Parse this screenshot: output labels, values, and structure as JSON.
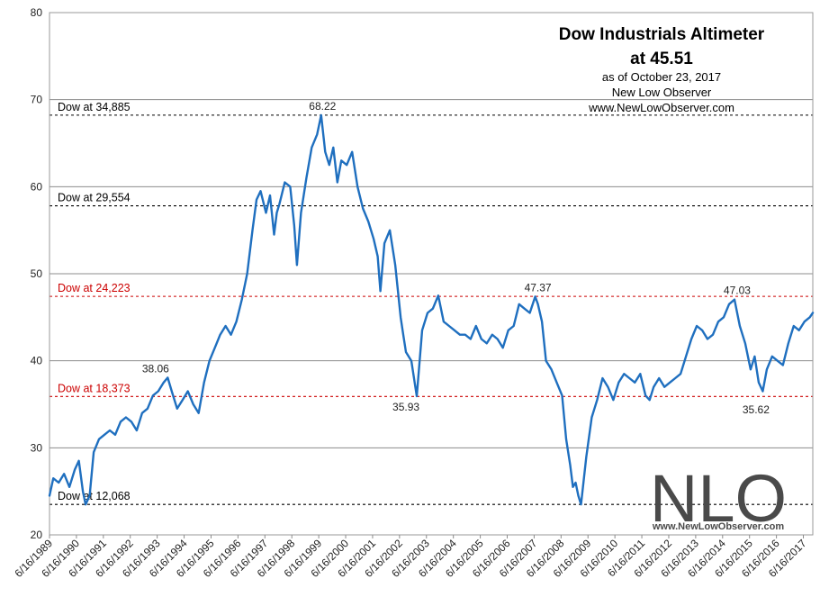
{
  "chart_data": {
    "type": "line",
    "title": "Dow Industrials Altimeter",
    "subtitle": "at 45.51",
    "notes": [
      "as of October 23, 2017",
      "New Low Observer",
      "www.NewLowObserver.com"
    ],
    "watermark": {
      "logo": "NLO",
      "url": "www.NewLowObserver.com"
    },
    "ylim": [
      20,
      80
    ],
    "yticks": [
      20,
      30,
      40,
      50,
      60,
      70,
      80
    ],
    "ytick_labels": [
      "20",
      "30",
      "40",
      "50",
      "60",
      "70",
      "80"
    ],
    "x_range": [
      1989.46,
      2017.81
    ],
    "xtick_values": [
      1989.46,
      1990.46,
      1991.46,
      1992.46,
      1993.46,
      1994.46,
      1995.46,
      1996.46,
      1997.46,
      1998.46,
      1999.46,
      2000.46,
      2001.46,
      2002.46,
      2003.46,
      2004.46,
      2005.46,
      2006.46,
      2007.46,
      2008.46,
      2009.46,
      2010.46,
      2011.46,
      2012.46,
      2013.46,
      2014.46,
      2015.46,
      2016.46,
      2017.46
    ],
    "xtick_labels": [
      "6/16/1989",
      "6/16/1990",
      "6/16/1991",
      "6/16/1992",
      "6/16/1993",
      "6/16/1994",
      "6/16/1995",
      "6/16/1996",
      "6/16/1997",
      "6/16/1998",
      "6/16/1999",
      "6/16/2000",
      "6/16/2001",
      "6/16/2002",
      "6/16/2003",
      "6/16/2004",
      "6/16/2005",
      "6/16/2006",
      "6/16/2007",
      "6/16/2008",
      "6/16/2009",
      "6/16/2010",
      "6/16/2011",
      "6/16/2012",
      "6/16/2013",
      "6/16/2014",
      "6/16/2015",
      "6/16/2016",
      "6/16/2017"
    ],
    "reference_lines": [
      {
        "label": "Dow at 34,885",
        "value": 68.22,
        "color": "#000000"
      },
      {
        "label": "Dow at 29,554",
        "value": 57.8,
        "color": "#000000"
      },
      {
        "label": "Dow at 24,223",
        "value": 47.4,
        "color": "#cc0000"
      },
      {
        "label": "Dow at 18,373",
        "value": 35.9,
        "color": "#cc0000"
      },
      {
        "label": "Dow at 12,068",
        "value": 23.5,
        "color": "#000000"
      }
    ],
    "annotations": [
      {
        "text": "68.22",
        "x": 1999.6,
        "y": 68.22
      },
      {
        "text": "38.06",
        "x": 1993.4,
        "y": 38.06
      },
      {
        "text": "35.93",
        "x": 2002.7,
        "y": 35.93
      },
      {
        "text": "47.37",
        "x": 2007.6,
        "y": 47.37
      },
      {
        "text": "47.03",
        "x": 2015.0,
        "y": 47.03
      },
      {
        "text": "35.62",
        "x": 2015.7,
        "y": 35.62
      }
    ],
    "series": [
      {
        "name": "Dow Industrials Altimeter",
        "color": "#1f6fbf",
        "x": [
          1989.46,
          1989.6,
          1989.8,
          1990.0,
          1990.2,
          1990.4,
          1990.55,
          1990.7,
          1990.8,
          1990.95,
          1991.1,
          1991.3,
          1991.5,
          1991.7,
          1991.9,
          1992.1,
          1992.3,
          1992.5,
          1992.7,
          1992.9,
          1993.1,
          1993.3,
          1993.5,
          1993.7,
          1993.85,
          1994.0,
          1994.2,
          1994.4,
          1994.6,
          1994.8,
          1995.0,
          1995.2,
          1995.4,
          1995.6,
          1995.8,
          1996.0,
          1996.2,
          1996.4,
          1996.6,
          1996.8,
          1997.0,
          1997.15,
          1997.3,
          1997.5,
          1997.65,
          1997.8,
          1997.9,
          1998.0,
          1998.2,
          1998.4,
          1998.55,
          1998.65,
          1998.8,
          1999.0,
          1999.2,
          1999.4,
          1999.55,
          1999.7,
          1999.85,
          2000.0,
          2000.15,
          2000.3,
          2000.5,
          2000.7,
          2000.9,
          2001.1,
          2001.3,
          2001.5,
          2001.65,
          2001.75,
          2001.9,
          2002.1,
          2002.3,
          2002.5,
          2002.6,
          2002.7,
          2002.9,
          2003.1,
          2003.3,
          2003.5,
          2003.7,
          2003.9,
          2004.1,
          2004.3,
          2004.5,
          2004.7,
          2004.9,
          2005.1,
          2005.3,
          2005.5,
          2005.7,
          2005.9,
          2006.1,
          2006.3,
          2006.5,
          2006.7,
          2006.9,
          2007.1,
          2007.3,
          2007.5,
          2007.6,
          2007.75,
          2007.9,
          2008.1,
          2008.3,
          2008.5,
          2008.65,
          2008.8,
          2008.9,
          2009.0,
          2009.1,
          2009.2,
          2009.4,
          2009.6,
          2009.8,
          2010.0,
          2010.2,
          2010.4,
          2010.6,
          2010.8,
          2011.0,
          2011.2,
          2011.4,
          2011.6,
          2011.75,
          2011.9,
          2012.1,
          2012.3,
          2012.5,
          2012.7,
          2012.9,
          2013.1,
          2013.3,
          2013.5,
          2013.7,
          2013.9,
          2014.1,
          2014.3,
          2014.5,
          2014.7,
          2014.9,
          2015.1,
          2015.3,
          2015.5,
          2015.65,
          2015.8,
          2015.95,
          2016.1,
          2016.3,
          2016.5,
          2016.7,
          2016.9,
          2017.1,
          2017.3,
          2017.5,
          2017.7,
          2017.81
        ],
        "y": [
          24.5,
          26.5,
          26.0,
          27.0,
          25.5,
          27.5,
          28.5,
          25.0,
          23.5,
          24.5,
          29.5,
          31.0,
          31.5,
          32.0,
          31.5,
          33.0,
          33.5,
          33.0,
          32.0,
          34.0,
          34.5,
          36.0,
          36.5,
          37.5,
          38.06,
          36.5,
          34.5,
          35.5,
          36.5,
          35.0,
          34.0,
          37.5,
          40.0,
          41.5,
          43.0,
          44.0,
          43.0,
          44.5,
          47.0,
          50.0,
          55.0,
          58.5,
          59.5,
          57.0,
          59.0,
          54.5,
          57.0,
          58.0,
          60.5,
          60.0,
          55.5,
          51.0,
          57.0,
          61.0,
          64.5,
          66.0,
          68.22,
          64.0,
          62.5,
          64.5,
          60.5,
          63.0,
          62.5,
          64.0,
          60.0,
          57.5,
          56.0,
          54.0,
          52.0,
          48.0,
          53.5,
          55.0,
          51.0,
          45.0,
          43.0,
          41.0,
          40.0,
          35.93,
          43.5,
          45.5,
          46.0,
          47.5,
          44.5,
          44.0,
          43.5,
          43.0,
          43.0,
          42.5,
          44.0,
          42.5,
          42.0,
          43.0,
          42.5,
          41.5,
          43.5,
          44.0,
          46.5,
          46.0,
          45.5,
          47.37,
          46.5,
          44.5,
          40.0,
          39.0,
          37.5,
          36.0,
          31.0,
          28.0,
          25.5,
          26.0,
          24.5,
          23.5,
          29.0,
          33.5,
          35.5,
          38.0,
          37.0,
          35.5,
          37.5,
          38.5,
          38.0,
          37.5,
          38.5,
          36.0,
          35.5,
          37.0,
          38.0,
          37.0,
          37.5,
          38.0,
          38.5,
          40.5,
          42.5,
          44.0,
          43.5,
          42.5,
          43.0,
          44.5,
          45.0,
          46.5,
          47.03,
          44.0,
          42.0,
          39.0,
          40.5,
          37.5,
          36.5,
          39.0,
          40.5,
          40.0,
          39.5,
          42.0,
          44.0,
          43.5,
          44.5,
          45.0,
          45.51
        ]
      }
    ]
  }
}
